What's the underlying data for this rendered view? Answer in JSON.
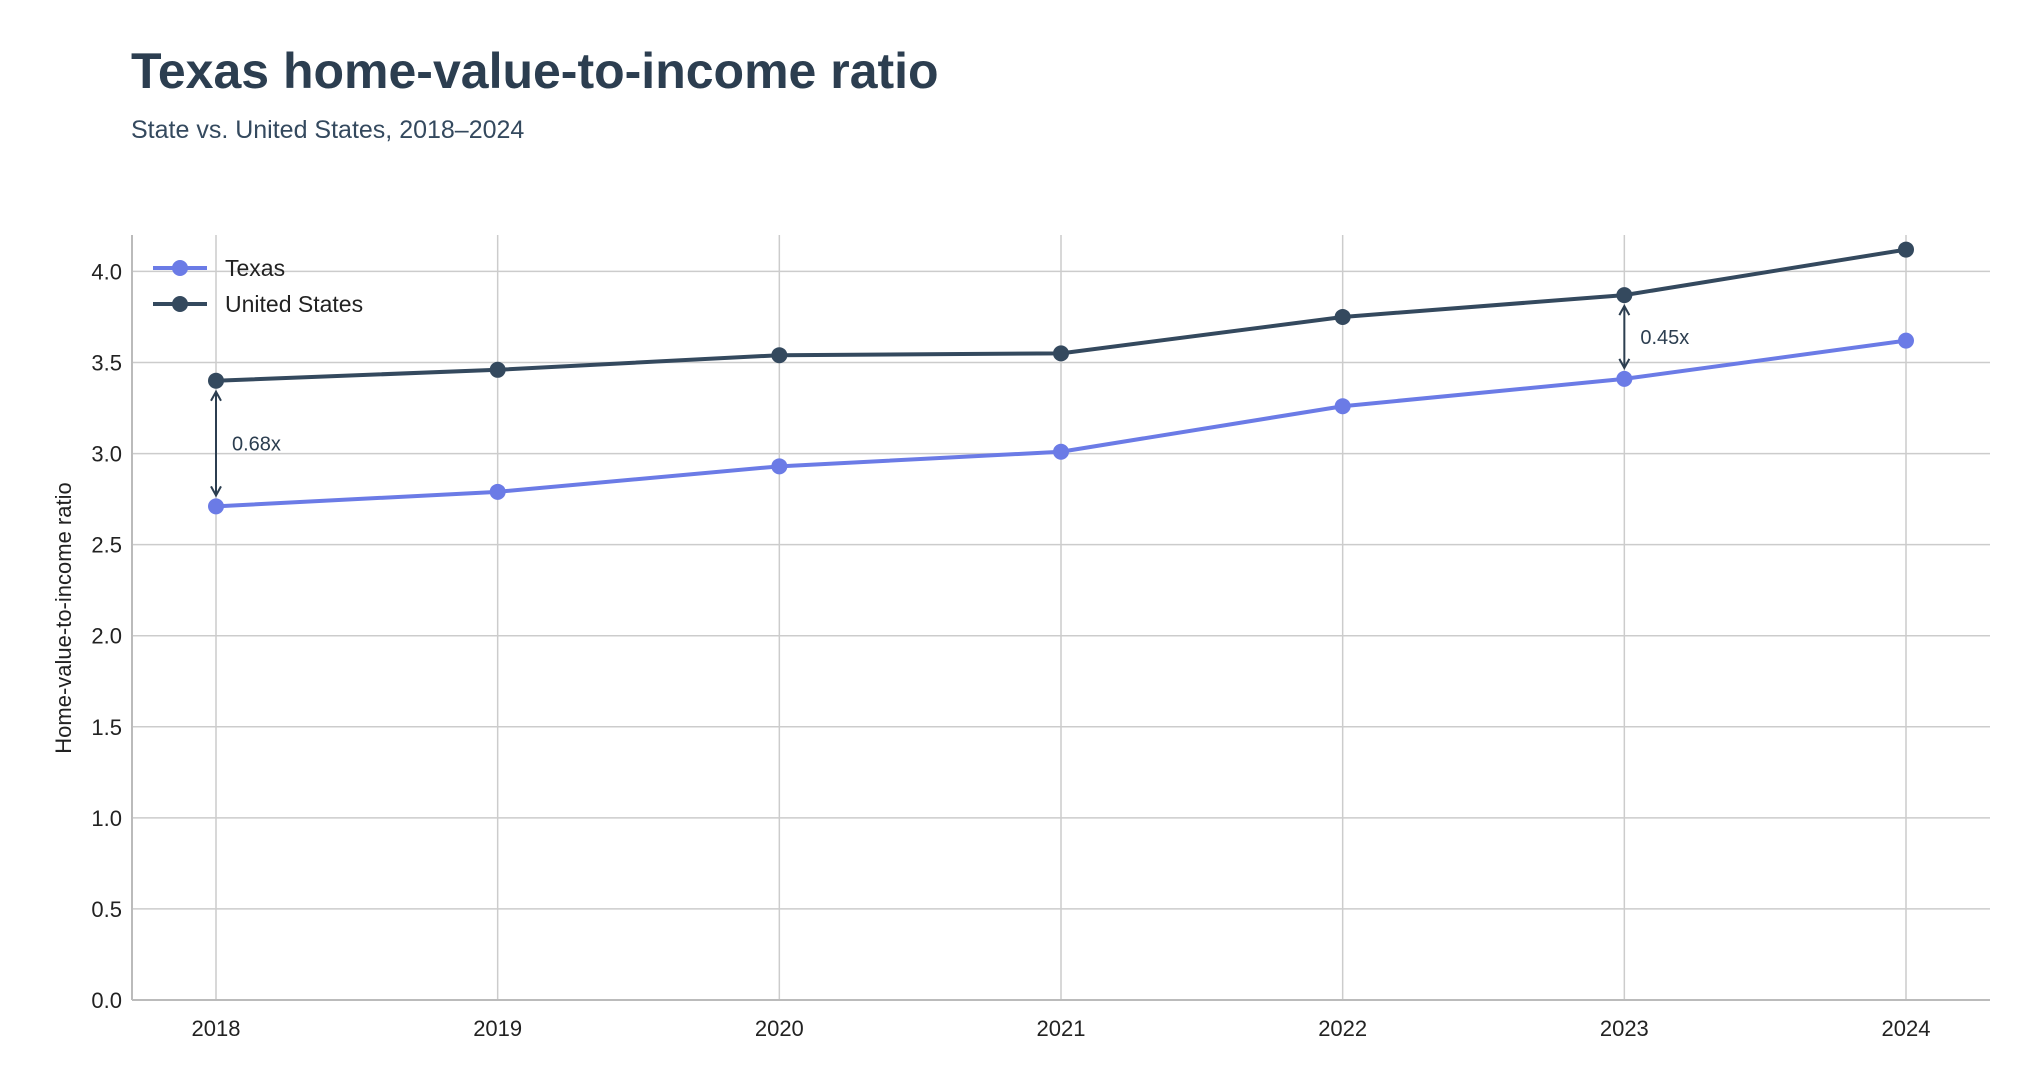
{
  "chart_data": {
    "type": "line",
    "title": "Texas home-value-to-income ratio",
    "subtitle": "State vs. United States, 2018–2024",
    "xlabel": "",
    "ylabel": "Home-value-to-income ratio",
    "x": [
      "2018",
      "2019",
      "2020",
      "2021",
      "2022",
      "2023",
      "2024"
    ],
    "ylim": [
      0,
      4.2
    ],
    "yticks": [
      "0.0",
      "0.5",
      "1.0",
      "1.5",
      "2.0",
      "2.5",
      "3.0",
      "3.5",
      "4.0"
    ],
    "grid": true,
    "legend_position": "top-left",
    "series": [
      {
        "name": "Texas",
        "color": "#6b7be6",
        "values": [
          2.71,
          2.79,
          2.93,
          3.01,
          3.26,
          3.41,
          3.62
        ]
      },
      {
        "name": "United States",
        "color": "#34495e",
        "values": [
          3.4,
          3.46,
          3.54,
          3.55,
          3.75,
          3.87,
          4.12
        ]
      }
    ],
    "annotations": [
      {
        "x": "2018",
        "text": "0.68x"
      },
      {
        "x": "2023",
        "text": "0.45x"
      }
    ]
  }
}
